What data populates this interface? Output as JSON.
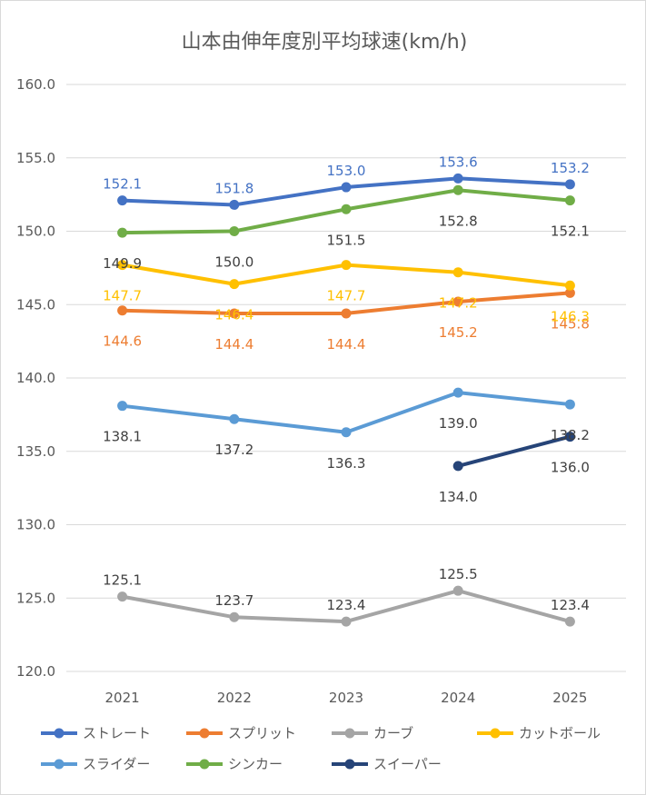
{
  "chart_data": {
    "type": "line",
    "title": "山本由伸年度別平均球速(km/h)",
    "categories": [
      "2021",
      "2022",
      "2023",
      "2024",
      "2025"
    ],
    "ylim": [
      120,
      160
    ],
    "ytick_labels": [
      "120.0",
      "125.0",
      "130.0",
      "135.0",
      "140.0",
      "145.0",
      "150.0",
      "155.0",
      "160.0"
    ],
    "grid": true,
    "legend_position": "bottom",
    "series": [
      {
        "name": "ストレート",
        "color": "#4472C4",
        "values": [
          152.1,
          151.8,
          153.0,
          153.6,
          153.2
        ],
        "labels": [
          "152.1",
          "151.8",
          "153.0",
          "153.6",
          "153.2"
        ],
        "label_side": "above"
      },
      {
        "name": "スプリット",
        "color": "#ED7D31",
        "values": [
          144.6,
          144.4,
          144.4,
          145.2,
          145.8
        ],
        "labels": [
          "144.6",
          "144.4",
          "144.4",
          "145.2",
          "145.8"
        ],
        "label_side": "below"
      },
      {
        "name": "カーブ",
        "color": "#A5A5A5",
        "values": [
          125.1,
          123.7,
          123.4,
          125.5,
          123.4
        ],
        "labels": [
          "125.1",
          "123.7",
          "123.4",
          "125.5",
          "123.4"
        ],
        "label_side": "above"
      },
      {
        "name": "カットボール",
        "color": "#FFC000",
        "values": [
          147.7,
          146.4,
          147.7,
          147.2,
          146.3
        ],
        "labels": [
          "147.7",
          "146.4",
          "147.7",
          "147.2",
          "146.3"
        ],
        "label_side": "below"
      },
      {
        "name": "スライダー",
        "color": "#5B9BD5",
        "values": [
          138.1,
          137.2,
          136.3,
          139.0,
          138.2
        ],
        "labels": [
          "138.1",
          "137.2",
          "136.3",
          "139.0",
          "138.2"
        ],
        "label_side": "below"
      },
      {
        "name": "シンカー",
        "color": "#70AD47",
        "values": [
          149.9,
          150.0,
          151.5,
          152.8,
          152.1
        ],
        "labels": [
          "149.9",
          "150.0",
          "151.5",
          "152.8",
          "152.1"
        ],
        "label_side": "below"
      },
      {
        "name": "スイーパー",
        "color": "#264478",
        "values": [
          null,
          null,
          null,
          134.0,
          136.0
        ],
        "labels": [
          null,
          null,
          null,
          "134.0",
          "136.0"
        ],
        "label_side": "below"
      }
    ]
  }
}
